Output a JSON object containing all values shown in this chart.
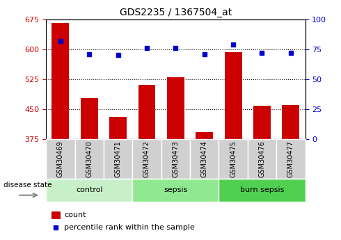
{
  "title": "GDS2235 / 1367504_at",
  "samples": [
    "GSM30469",
    "GSM30470",
    "GSM30471",
    "GSM30472",
    "GSM30473",
    "GSM30474",
    "GSM30475",
    "GSM30476",
    "GSM30477"
  ],
  "counts": [
    665,
    478,
    430,
    510,
    530,
    392,
    593,
    458,
    460
  ],
  "percentiles": [
    82,
    71,
    70,
    76,
    76,
    71,
    79,
    72,
    72
  ],
  "ylim_left": [
    375,
    675
  ],
  "ylim_right": [
    0,
    100
  ],
  "yticks_left": [
    375,
    450,
    525,
    600,
    675
  ],
  "yticks_right": [
    0,
    25,
    50,
    75,
    100
  ],
  "bar_color": "#cc0000",
  "dot_color": "#0000cc",
  "bar_width": 0.6,
  "groups": [
    {
      "label": "control",
      "indices": [
        0,
        1,
        2
      ],
      "color": "#c8f0c8"
    },
    {
      "label": "sepsis",
      "indices": [
        3,
        4,
        5
      ],
      "color": "#90e890"
    },
    {
      "label": "burn sepsis",
      "indices": [
        6,
        7,
        8
      ],
      "color": "#50d050"
    }
  ],
  "tick_label_color_left": "#cc0000",
  "tick_label_color_right": "#0000cc",
  "legend_count_label": "count",
  "legend_pct_label": "percentile rank within the sample",
  "gray_box_color": "#d0d0d0",
  "dot_gridline_color": "#333333"
}
